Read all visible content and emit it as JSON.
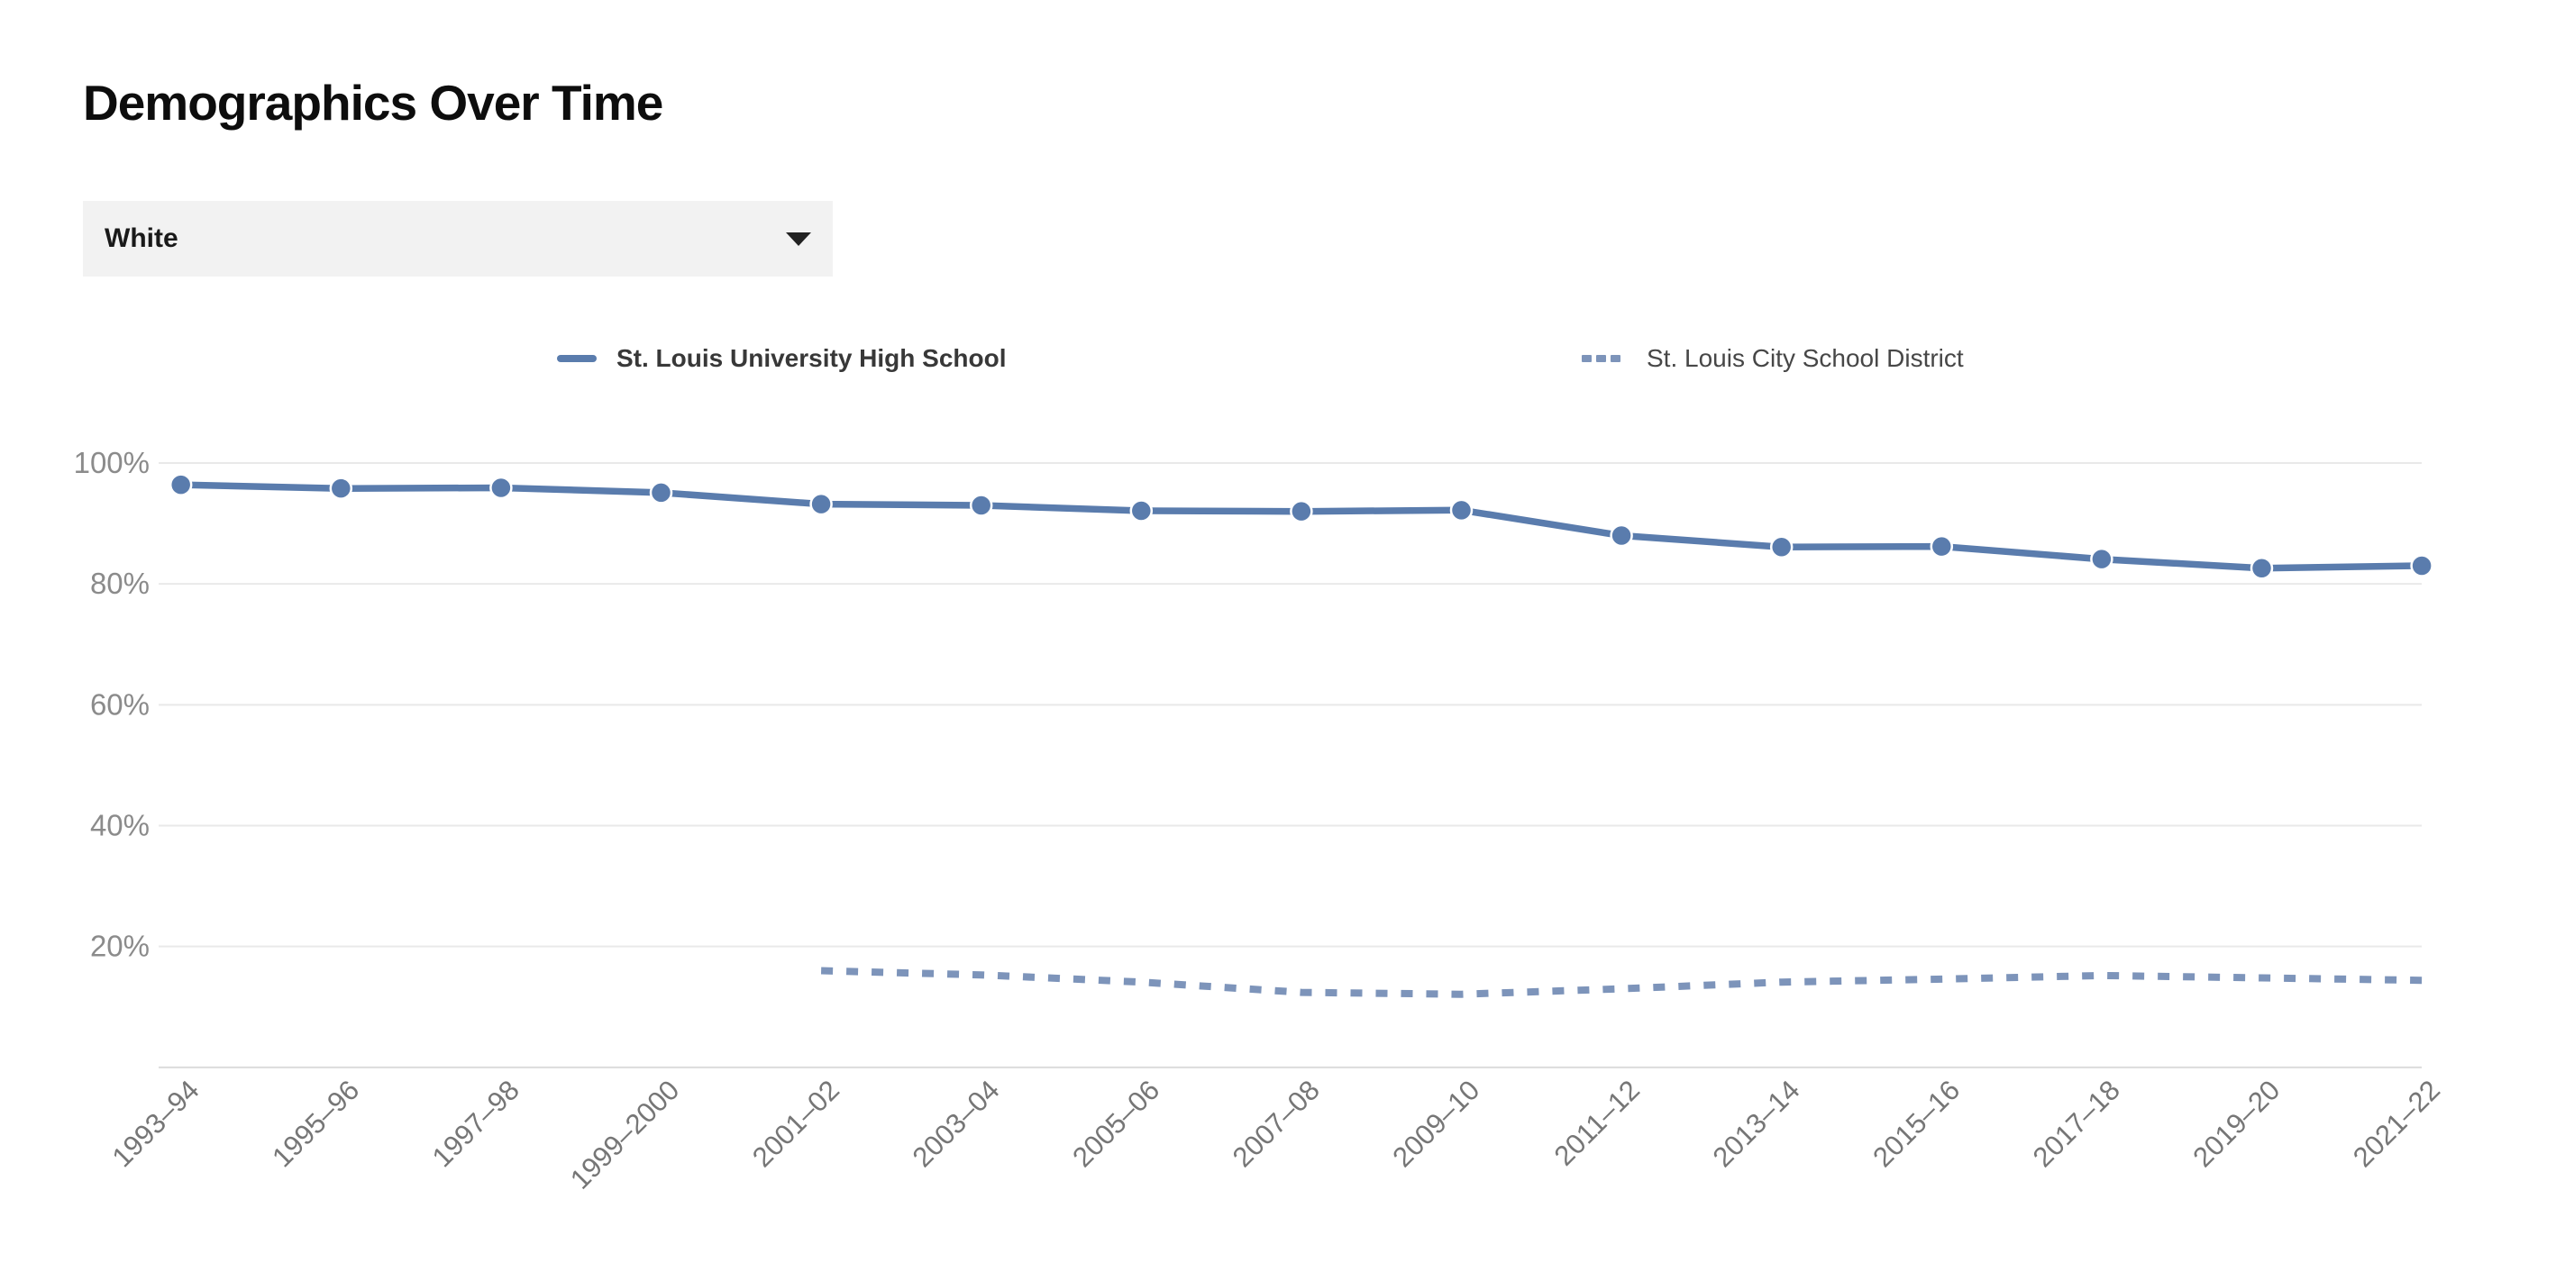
{
  "page": {
    "title": "Demographics Over Time"
  },
  "filter": {
    "value": "White"
  },
  "legend": [
    {
      "label": "St. Louis University High School",
      "style": "solid",
      "color": "#5a7cad"
    },
    {
      "label": "St. Louis City School District",
      "style": "dotted",
      "color": "#7d94ba"
    }
  ],
  "chart_data": {
    "type": "line",
    "title": "Demographics Over Time",
    "xlabel": "",
    "ylabel": "",
    "categories": [
      "1993–94",
      "1995–96",
      "1997–98",
      "1999–2000",
      "2001–02",
      "2003–04",
      "2005–06",
      "2007–08",
      "2009–10",
      "2011–12",
      "2013–14",
      "2015–16",
      "2017–18",
      "2019–20",
      "2021–22"
    ],
    "series": [
      {
        "name": "St. Louis University High School",
        "line_style": "solid",
        "color": "#5a7cad",
        "values": [
          96.4,
          95.8,
          95.9,
          95.1,
          93.2,
          93.0,
          92.1,
          92.0,
          92.2,
          88.0,
          86.1,
          86.2,
          84.1,
          82.6,
          83.0
        ]
      },
      {
        "name": "St. Louis City School District",
        "line_style": "dotted",
        "color": "#7d94ba",
        "values": [
          null,
          null,
          null,
          null,
          16.0,
          15.3,
          14.1,
          12.4,
          12.1,
          13.0,
          14.1,
          14.6,
          15.2,
          14.8,
          14.4
        ]
      }
    ],
    "yticks": [
      "100%",
      "80%",
      "60%",
      "40%",
      "20%"
    ],
    "ytick_values": [
      100,
      80,
      60,
      40,
      20
    ],
    "ylim": [
      0,
      105
    ],
    "grid": "horizontal",
    "legend_position": "top",
    "unit": "%"
  }
}
